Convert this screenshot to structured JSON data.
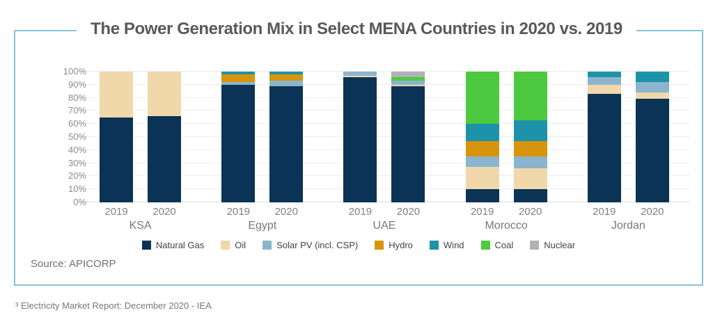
{
  "title": "The Power Generation Mix in Select MENA Countries in 2020 vs. 2019",
  "source": "Source: APICORP",
  "footnote": "³ Electricity Market Report: December 2020 - IEA",
  "colors": {
    "frame_border": "#85c3d7",
    "title_text": "#58595d",
    "gridline": "#ececee",
    "axis_line": "#d8dce0"
  },
  "chart_data": {
    "type": "bar",
    "stacked": true,
    "title": "The Power Generation Mix in Select MENA Countries in 2020 vs. 2019",
    "xlabel": "",
    "ylabel": "",
    "ylim": [
      0,
      100
    ],
    "grid": true,
    "legend_position": "bottom",
    "ytick_values": [
      0,
      10,
      20,
      30,
      40,
      50,
      60,
      70,
      80,
      90,
      100
    ],
    "ytick_labels": [
      "0%",
      "10%",
      "20%",
      "30%",
      "40%",
      "50%",
      "60%",
      "70%",
      "80%",
      "90%",
      "100%"
    ],
    "series": [
      {
        "name": "Natural Gas",
        "color": "#0b3355"
      },
      {
        "name": "Oil",
        "color": "#f0d8ab"
      },
      {
        "name": "Solar PV (incl. CSP)",
        "color": "#8bb5ce"
      },
      {
        "name": "Hydro",
        "color": "#d8940b"
      },
      {
        "name": "Wind",
        "color": "#1d93a9"
      },
      {
        "name": "Coal",
        "color": "#4dc93f"
      },
      {
        "name": "Nuclear",
        "color": "#afb1b4"
      }
    ],
    "groups": [
      {
        "country": "KSA",
        "bars": [
          {
            "year": "2019",
            "values": {
              "Natural Gas": 65,
              "Oil": 35
            }
          },
          {
            "year": "2020",
            "values": {
              "Natural Gas": 66,
              "Oil": 34
            }
          }
        ]
      },
      {
        "country": "Egypt",
        "bars": [
          {
            "year": "2019",
            "values": {
              "Natural Gas": 90,
              "Solar PV (incl. CSP)": 2,
              "Hydro": 6,
              "Wind": 2
            }
          },
          {
            "year": "2020",
            "values": {
              "Natural Gas": 89,
              "Solar PV (incl. CSP)": 4,
              "Hydro": 5,
              "Wind": 2
            }
          }
        ]
      },
      {
        "country": "UAE",
        "bars": [
          {
            "year": "2019",
            "values": {
              "Natural Gas": 96,
              "Oil": 1,
              "Solar PV (incl. CSP)": 3
            }
          },
          {
            "year": "2020",
            "values": {
              "Natural Gas": 89,
              "Oil": 1,
              "Solar PV (incl. CSP)": 3,
              "Coal": 3,
              "Nuclear": 4
            }
          }
        ]
      },
      {
        "country": "Morocco",
        "bars": [
          {
            "year": "2019",
            "values": {
              "Natural Gas": 10,
              "Oil": 17,
              "Solar PV (incl. CSP)": 8,
              "Hydro": 12,
              "Wind": 13,
              "Coal": 40
            }
          },
          {
            "year": "2020",
            "values": {
              "Natural Gas": 10,
              "Oil": 16,
              "Solar PV (incl. CSP)": 9,
              "Hydro": 12,
              "Wind": 16,
              "Coal": 37
            }
          }
        ]
      },
      {
        "country": "Jordan",
        "bars": [
          {
            "year": "2019",
            "values": {
              "Natural Gas": 83,
              "Oil": 7,
              "Solar PV (incl. CSP)": 6,
              "Wind": 4
            }
          },
          {
            "year": "2020",
            "values": {
              "Natural Gas": 79,
              "Oil": 5,
              "Solar PV (incl. CSP)": 8,
              "Wind": 8
            }
          }
        ]
      }
    ]
  }
}
